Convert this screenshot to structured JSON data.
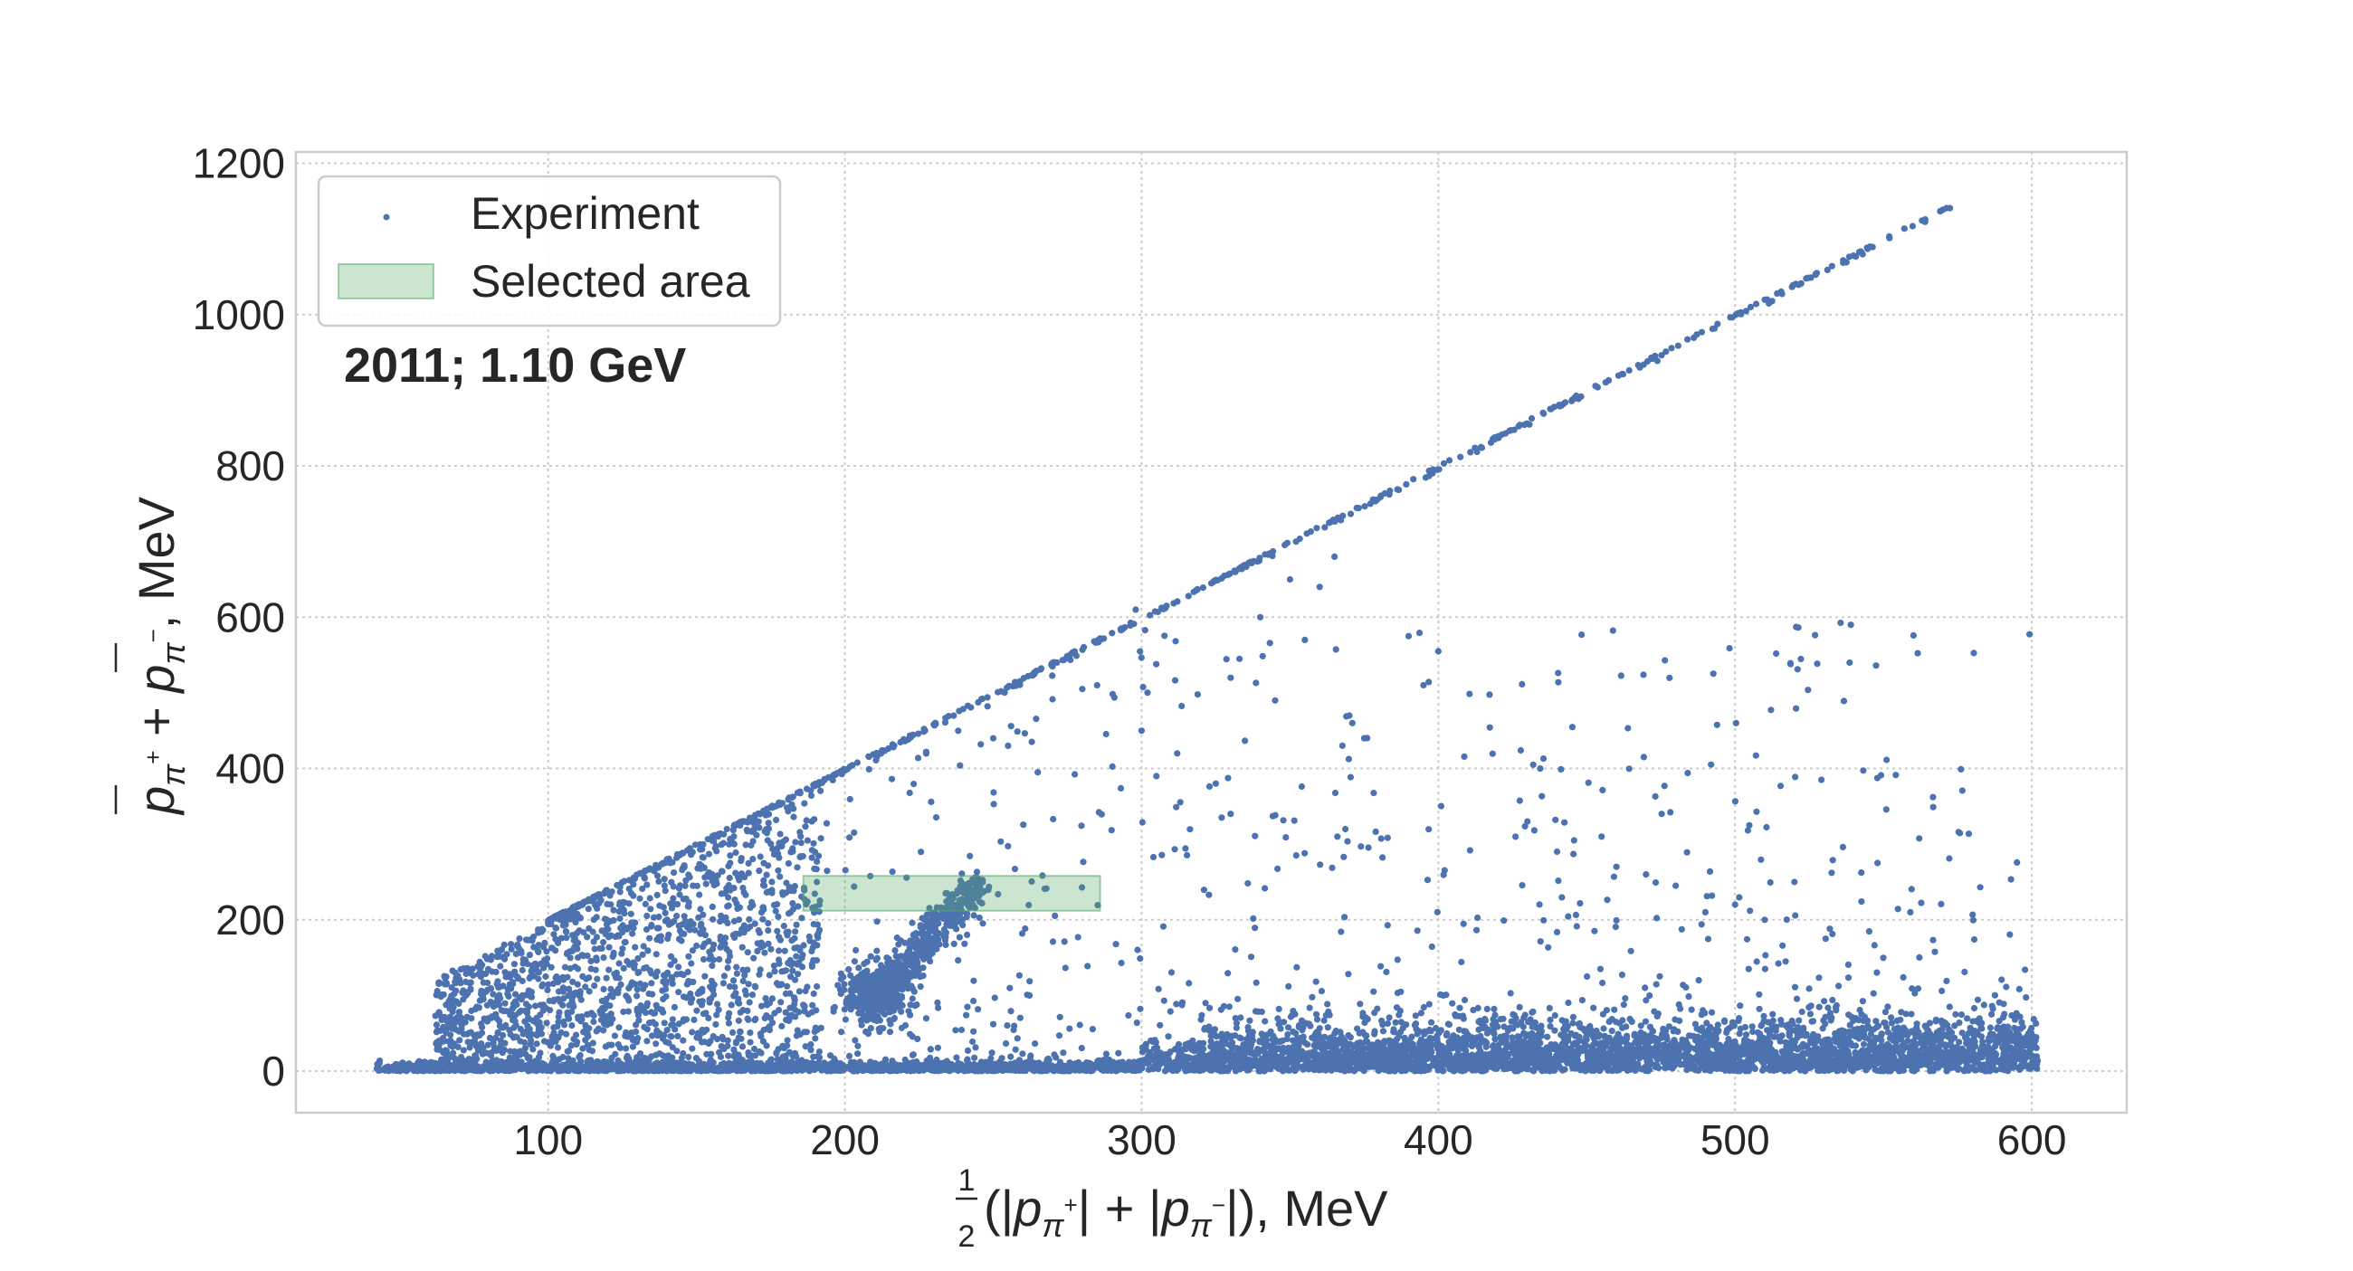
{
  "chart_data": {
    "type": "scatter",
    "annotation": "2011; 1.10 GeV",
    "xlabel": {
      "frac_num": "1",
      "frac_den": "2",
      "open": "(|",
      "p1": "p",
      "p1_sub": "π",
      "p1_sup": "+",
      "mid": "| + |",
      "p2": "p",
      "p2_sub": "π",
      "p2_sup": "−",
      "close": "|), MeV"
    },
    "ylabel": {
      "p1": "p",
      "p1_sub": "π",
      "p1_sup": "+",
      "plus": " + ",
      "p2": "p",
      "p2_sub": "π",
      "p2_sup": "−",
      "tail": ", MeV"
    },
    "xlim": [
      15,
      632
    ],
    "ylim": [
      -55,
      1215
    ],
    "xticks": [
      100,
      200,
      300,
      400,
      500,
      600
    ],
    "yticks": [
      0,
      200,
      400,
      600,
      800,
      1000,
      1200
    ],
    "grid": true,
    "legend_position": "top-left",
    "series": [
      {
        "name": "Experiment",
        "color": "#4c72b0",
        "marker": "dot"
      }
    ],
    "selected_area": {
      "name": "Selected area",
      "x": [
        186,
        286
      ],
      "y": [
        212,
        258
      ],
      "color": "#55a868",
      "opacity": 0.3
    },
    "distribution_description": {
      "diagonal_edge": "points along y = 2x from x≈100 to x≈573",
      "baseline_band": "dense band near y≈0–50 spanning x≈42–602",
      "cluster": "dense cluster near x≈205–245, y≈60–260",
      "scattered": "sparse points between diagonal and baseline"
    }
  },
  "colors": {
    "points": "#4c72b0",
    "grid": "#cccccc",
    "frame": "#cccccc"
  }
}
